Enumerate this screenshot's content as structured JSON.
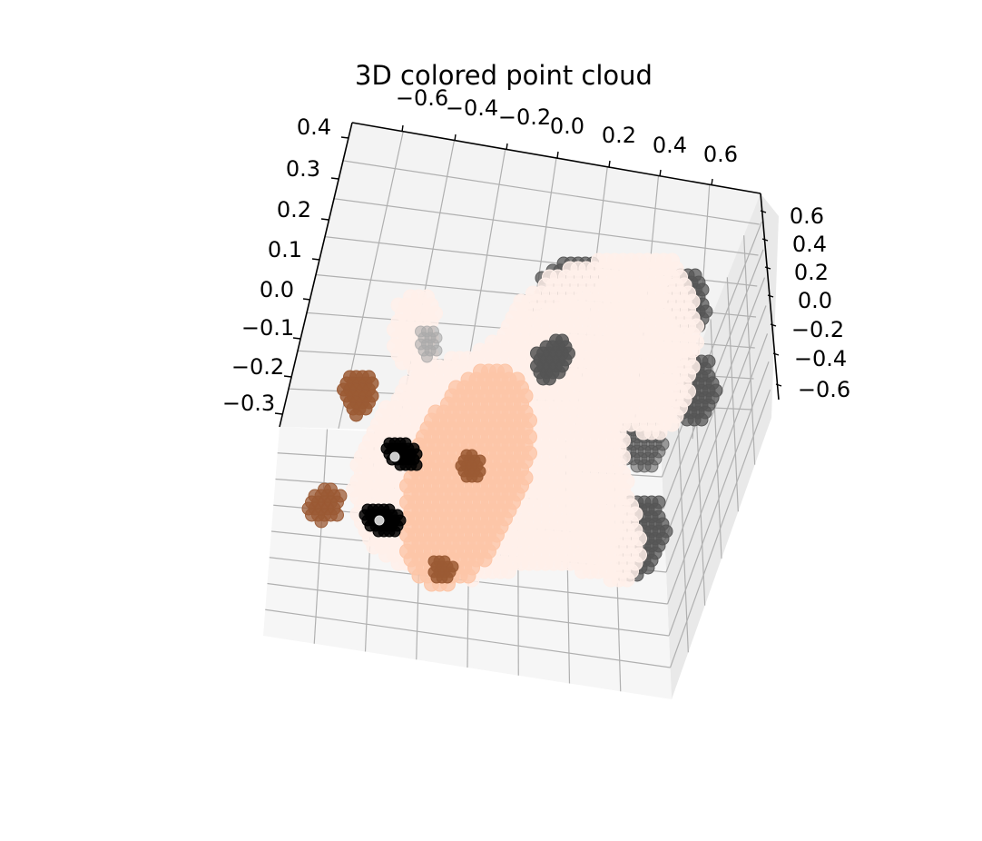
{
  "chart_data": {
    "type": "scatter",
    "projection": "3d",
    "title": "3D colored point cloud",
    "grid": true,
    "x_axis": {
      "ticks": [
        "−0.6",
        "−0.4",
        "−0.2",
        "0.0",
        "0.2",
        "0.4",
        "0.6"
      ]
    },
    "y_axis": {
      "ticks": [
        "0.6",
        "0.4",
        "0.2",
        "0.0",
        "−0.2",
        "−0.4",
        "−0.6"
      ]
    },
    "z_axis": {
      "ticks": [
        "0.4",
        "0.3",
        "0.2",
        "0.1",
        "0.0",
        "−0.1",
        "−0.2",
        "−0.3"
      ]
    },
    "colors": {
      "body": "#fff0ea",
      "face": "#fdc6a8",
      "dark_patch": "#555555",
      "ear_inner": "#aaaaaa",
      "brown": "#9b5a34",
      "eye": "#000000",
      "pane_top": "#f2f2f2",
      "pane_side": "#e8e8e8",
      "grid": "#b0b0b0"
    }
  }
}
